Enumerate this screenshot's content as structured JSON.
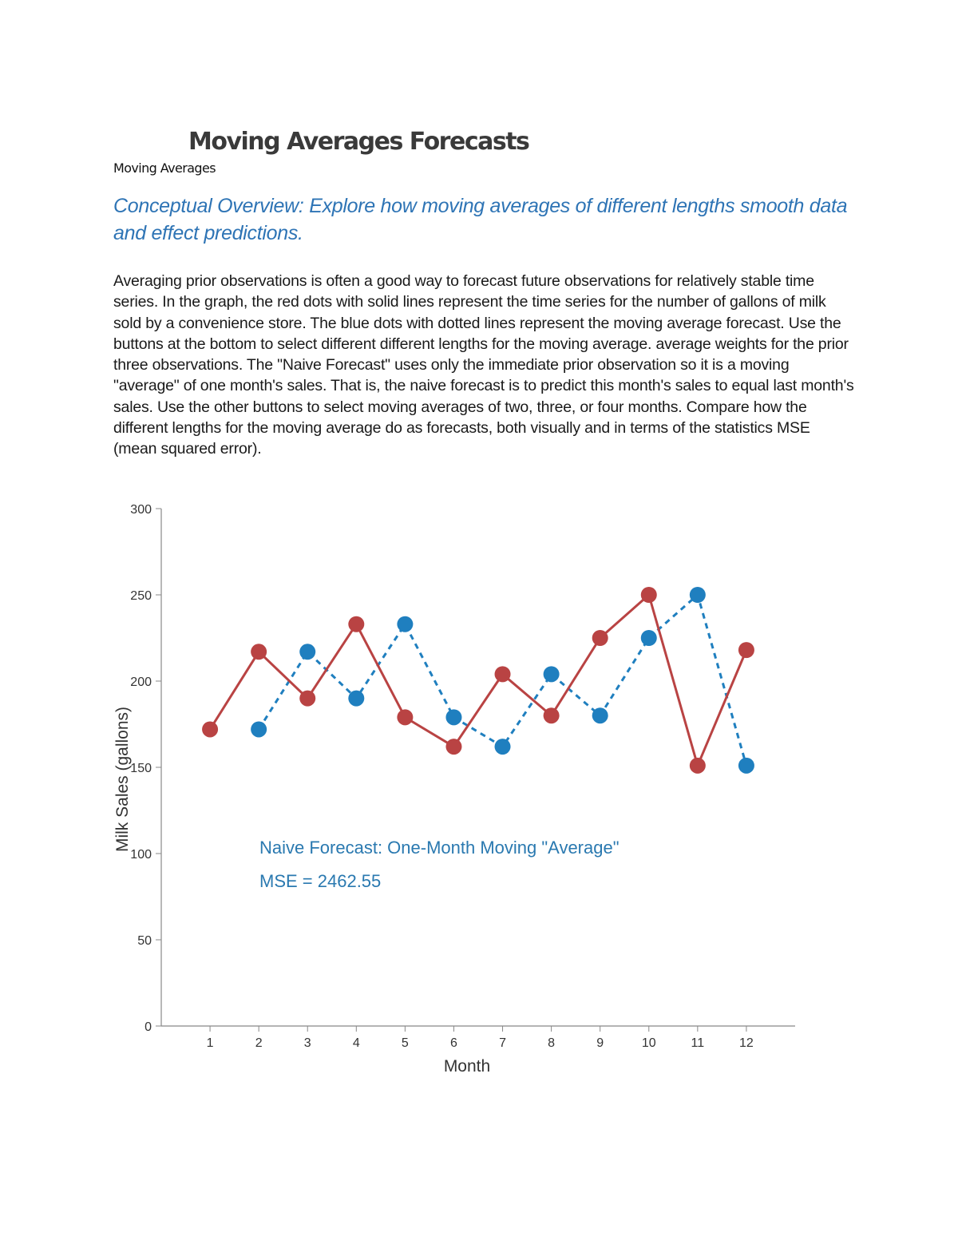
{
  "document": {
    "title": "Moving Averages Forecasts",
    "subtitle": "Moving Averages",
    "overview": "Conceptual Overview: Explore how moving averages of different lengths smooth data and effect predictions.",
    "body": "Averaging prior observations is often a good way to forecast future observations for relatively stable time series. In the graph, the red dots with solid lines represent the time series for the number of gallons of milk sold by a convenience store. The blue dots with dotted lines represent the moving average forecast. Use the buttons at the bottom to select different different lengths for the moving average. average weights for the prior three observations. The \"Naive Forecast\" uses only the immediate prior observation so it is a moving \"average\" of one month's sales. That is, the naive forecast is to predict this month's sales to equal last month's sales. Use the other buttons to select moving averages of two, three, or four months. Compare how the different lengths for the moving average do as forecasts, both visually and in terms of the statistics MSE (mean squared error)."
  },
  "chart_data": {
    "type": "line",
    "xlabel": "Month",
    "ylabel": "Milk Sales (gallons)",
    "xlim": [
      0,
      13
    ],
    "ylim": [
      0,
      300
    ],
    "x_ticks": [
      1,
      2,
      3,
      4,
      5,
      6,
      7,
      8,
      9,
      10,
      11,
      12
    ],
    "y_ticks": [
      0,
      50,
      100,
      150,
      200,
      250,
      300
    ],
    "grid": false,
    "series": [
      {
        "color": "#b94343",
        "style": "solid",
        "x": [
          1,
          2,
          3,
          4,
          5,
          6,
          7,
          8,
          9,
          10,
          11,
          12
        ],
        "values": [
          172,
          217,
          190,
          233,
          179,
          162,
          204,
          180,
          225,
          250,
          151,
          218
        ]
      },
      {
        "color": "#1f7fbf",
        "style": "dashed",
        "x": [
          2,
          3,
          4,
          5,
          6,
          7,
          8,
          9,
          10,
          11,
          12
        ],
        "values": [
          172,
          217,
          190,
          233,
          179,
          162,
          204,
          180,
          225,
          250,
          151
        ]
      }
    ],
    "annotations": {
      "method": "Naive Forecast: One-Month Moving \"Average\"",
      "mse": "MSE = 2462.55"
    }
  }
}
